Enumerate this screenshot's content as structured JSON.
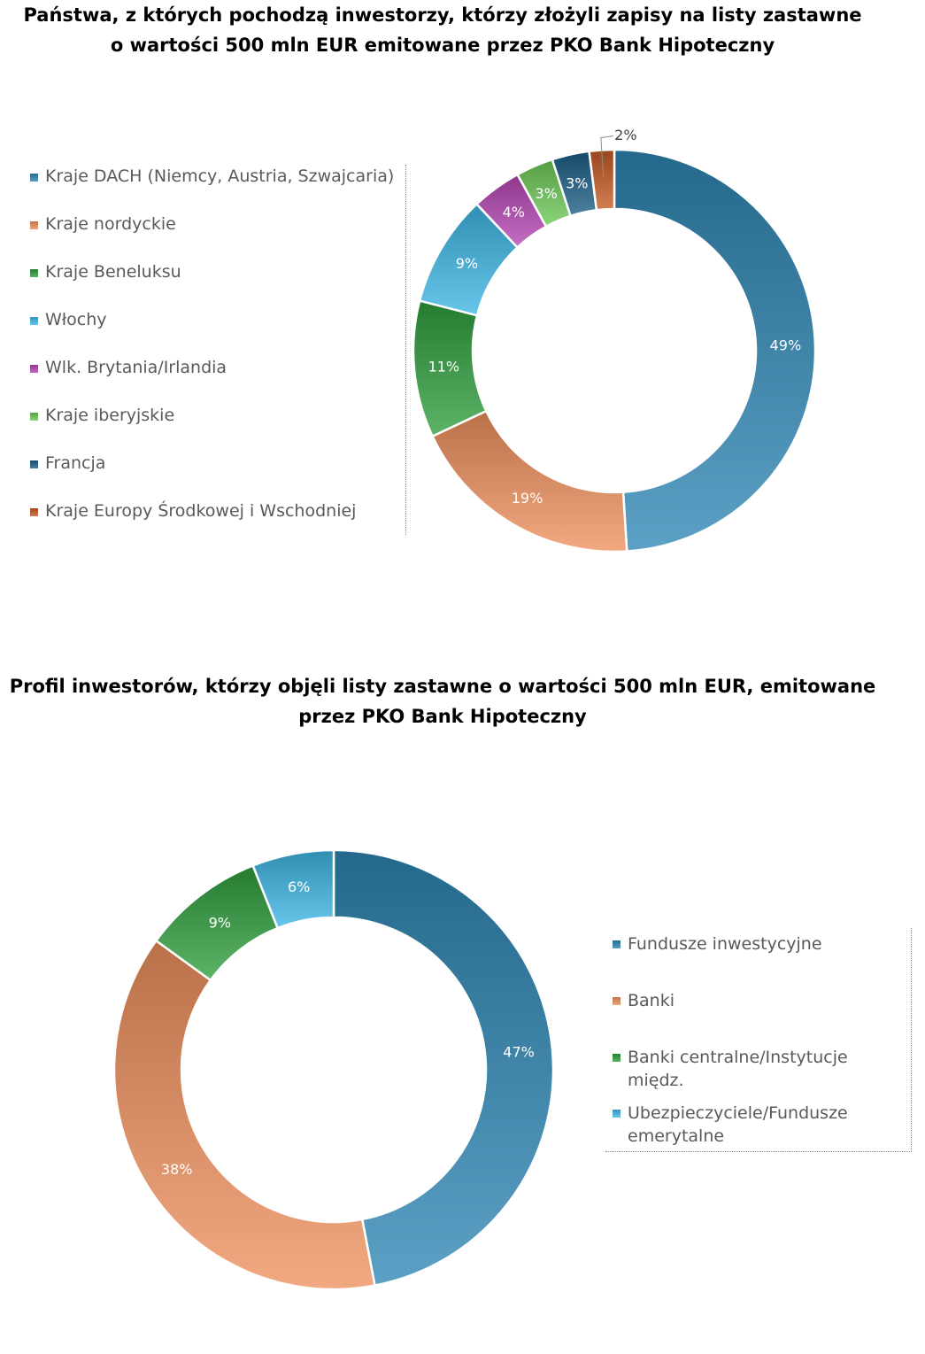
{
  "chart_data": [
    {
      "type": "pie",
      "variant": "donut",
      "title": "Państwa, z których pochodzą inwestorzy, którzy złożyli zapisy na listy zastawne o wartości 500 mln EUR emitowane przez PKO Bank Hipoteczny",
      "title_lines": [
        "Państwa, z których pochodzą inwestorzy, którzy złożyli zapisy na listy zastawne",
        "o wartości 500 mln EUR emitowane przez PKO Bank Hipoteczny"
      ],
      "legend_position": "left",
      "categories": [
        "Kraje DACH (Niemcy, Austria, Szwajcaria)",
        "Kraje nordyckie",
        "Kraje Beneluksu",
        "Włochy",
        "Wlk. Brytania/Irlandia",
        "Kraje iberyjskie",
        "Francja",
        "Kraje Europy Środkowej i Wschodniej"
      ],
      "values": [
        49,
        19,
        11,
        9,
        4,
        3,
        3,
        2
      ],
      "labels": [
        "49%",
        "19%",
        "11%",
        "9%",
        "4%",
        "3%",
        "3%",
        "2%"
      ],
      "colors": [
        "#2E86B4",
        "#EE8F5C",
        "#2F9E3C",
        "#3FB6E5",
        "#B547B3",
        "#6CC957",
        "#1A5E84",
        "#C65A24"
      ]
    },
    {
      "type": "pie",
      "variant": "donut",
      "title": "Profil inwestorów, którzy objęli listy zastawne o wartości 500 mln EUR, emitowane przez PKO Bank Hipoteczny",
      "title_lines": [
        "Profil inwestorów, którzy objęli listy zastawne o wartości 500 mln EUR, emitowane",
        "przez PKO Bank Hipoteczny"
      ],
      "legend_position": "right",
      "categories": [
        "Fundusze inwestycyjne",
        "Banki",
        "Banki centralne/Instytucje międz.",
        "Ubezpieczyciele/Fundusze emerytalne"
      ],
      "values": [
        47,
        38,
        9,
        6
      ],
      "labels": [
        "47%",
        "38%",
        "9%",
        "6%"
      ],
      "colors": [
        "#2E86B4",
        "#EE8F5C",
        "#2F9E3C",
        "#3FB6E5"
      ]
    }
  ]
}
